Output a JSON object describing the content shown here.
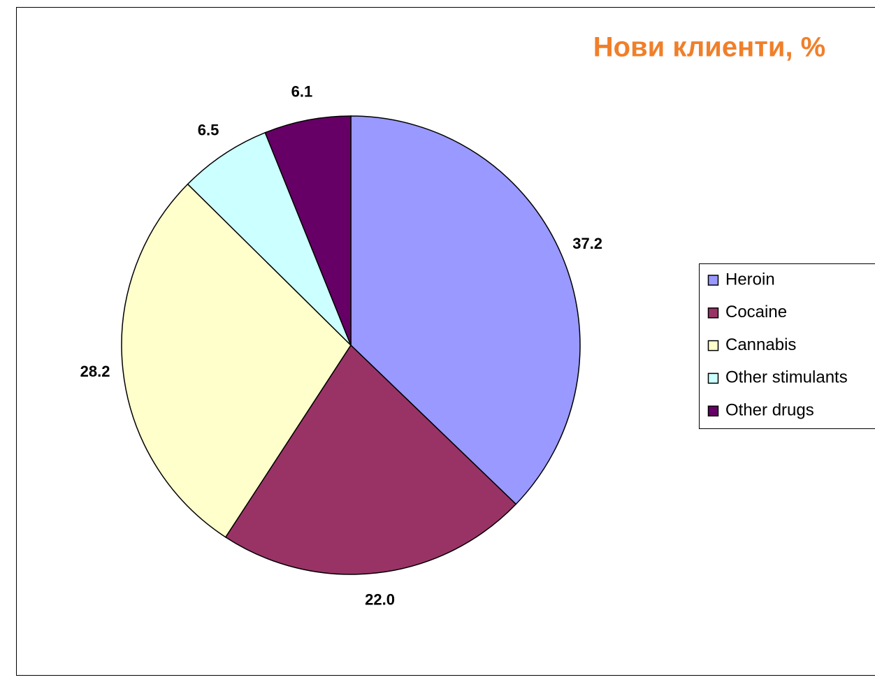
{
  "chart_data": {
    "type": "pie",
    "title": "Нови клиенти, %",
    "categories": [
      "Heroin",
      "Cocaine",
      "Cannabis",
      "Other stimulants",
      "Other drugs"
    ],
    "values": [
      37.2,
      22.0,
      28.2,
      6.5,
      6.1
    ],
    "value_labels": [
      "37.2",
      "22.0",
      "28.2",
      "6.5",
      "6.1"
    ],
    "colors": [
      "#9999ff",
      "#993366",
      "#ffffcc",
      "#ccffff",
      "#660066"
    ],
    "legend": "right"
  }
}
